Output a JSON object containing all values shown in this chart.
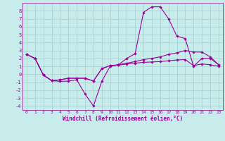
{
  "xlabel": "Windchill (Refroidissement éolien,°C)",
  "bg_color": "#c8ecec",
  "grid_color": "#a0d0d0",
  "line_color": "#990099",
  "spine_color": "#800080",
  "xlim": [
    -0.5,
    23.5
  ],
  "ylim": [
    -4.5,
    9.0
  ],
  "xticks": [
    0,
    1,
    2,
    3,
    4,
    5,
    6,
    7,
    8,
    9,
    10,
    11,
    12,
    13,
    14,
    15,
    16,
    17,
    18,
    19,
    20,
    21,
    22,
    23
  ],
  "yticks": [
    -4,
    -3,
    -2,
    -1,
    0,
    1,
    2,
    3,
    4,
    5,
    6,
    7,
    8
  ],
  "s1_y": [
    2.5,
    2.0,
    -0.1,
    -0.8,
    -0.9,
    -0.85,
    -0.7,
    -2.5,
    -4.0,
    -0.9,
    1.0,
    1.2,
    2.0,
    2.6,
    7.8,
    8.5,
    8.5,
    7.0,
    4.8,
    4.5,
    1.0,
    2.0,
    2.0,
    1.2
  ],
  "s2_y": [
    2.5,
    2.0,
    -0.1,
    -0.8,
    -0.7,
    -0.5,
    -0.5,
    -0.5,
    -0.85,
    0.7,
    1.1,
    1.2,
    1.4,
    1.6,
    1.85,
    2.0,
    2.2,
    2.5,
    2.7,
    3.0,
    2.8,
    2.8,
    2.2,
    1.2
  ],
  "s3_y": [
    2.5,
    2.0,
    -0.1,
    -0.8,
    -0.7,
    -0.5,
    -0.5,
    -0.5,
    -0.85,
    0.7,
    1.1,
    1.15,
    1.3,
    1.4,
    1.5,
    1.55,
    1.6,
    1.7,
    1.8,
    1.85,
    1.1,
    1.3,
    1.2,
    1.0
  ]
}
